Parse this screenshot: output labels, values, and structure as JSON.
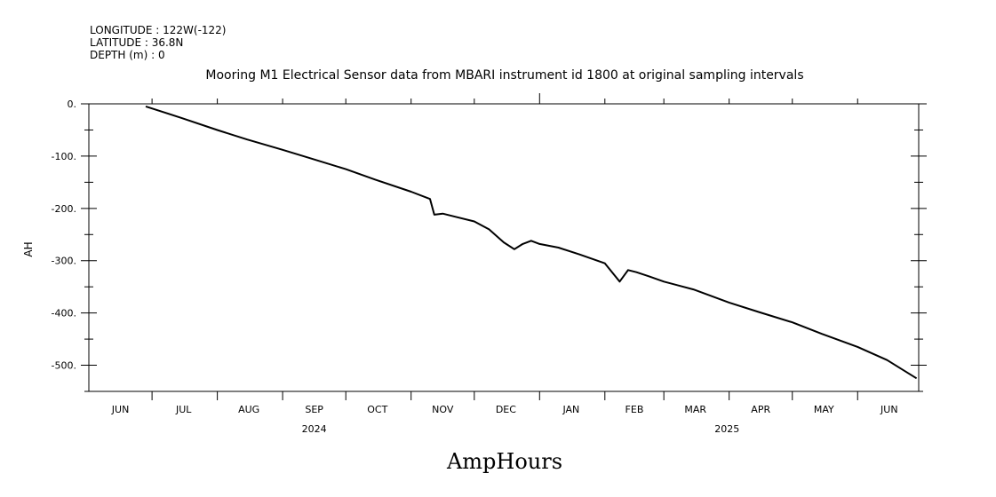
{
  "header": {
    "longitude": "LONGITUDE : 122W(-122)",
    "latitude": "LATITUDE : 36.8N",
    "depth": "DEPTH (m) : 0"
  },
  "caption": "AmpHours",
  "chart_data": {
    "type": "line",
    "title": "Mooring M1 Electrical Sensor data from MBARI instrument id 1800 at original sampling intervals",
    "xlabel": "",
    "ylabel": "AH",
    "xlim": [
      "2024-06-01",
      "2025-06-30"
    ],
    "ylim": [
      -550,
      0
    ],
    "y_ticks": [
      0,
      -100,
      -200,
      -300,
      -400,
      -500
    ],
    "y_tick_labels": [
      "0.",
      "-100.",
      "-200.",
      "-300.",
      "-400.",
      "-500."
    ],
    "x_month_labels": [
      {
        "label": "JUN",
        "date": "2024-06-16"
      },
      {
        "label": "JUL",
        "date": "2024-07-16"
      },
      {
        "label": "AUG",
        "date": "2024-08-16"
      },
      {
        "label": "SEP",
        "date": "2024-09-16"
      },
      {
        "label": "OCT",
        "date": "2024-10-16"
      },
      {
        "label": "NOV",
        "date": "2024-11-16"
      },
      {
        "label": "DEC",
        "date": "2024-12-16"
      },
      {
        "label": "JAN",
        "date": "2025-01-16"
      },
      {
        "label": "FEB",
        "date": "2025-02-15"
      },
      {
        "label": "MAR",
        "date": "2025-03-16"
      },
      {
        "label": "APR",
        "date": "2025-04-16"
      },
      {
        "label": "MAY",
        "date": "2025-05-16"
      },
      {
        "label": "JUN",
        "date": "2025-06-16"
      }
    ],
    "x_year_labels": [
      {
        "label": "2024",
        "date": "2024-09-16"
      },
      {
        "label": "2025",
        "date": "2025-03-31"
      }
    ],
    "series": [
      {
        "color": "#000000",
        "x": [
          "2024-06-28",
          "2024-07-15",
          "2024-08-01",
          "2024-08-15",
          "2024-09-01",
          "2024-09-15",
          "2024-10-01",
          "2024-10-15",
          "2024-11-01",
          "2024-11-10",
          "2024-11-12",
          "2024-11-16",
          "2024-12-01",
          "2024-12-08",
          "2024-12-15",
          "2024-12-20",
          "2024-12-24",
          "2024-12-28",
          "2025-01-01",
          "2025-01-10",
          "2025-01-20",
          "2025-02-01",
          "2025-02-08",
          "2025-02-12",
          "2025-02-16",
          "2025-02-22",
          "2025-03-01",
          "2025-03-15",
          "2025-04-01",
          "2025-04-15",
          "2025-05-01",
          "2025-05-15",
          "2025-06-01",
          "2025-06-15",
          "2025-06-29"
        ],
        "y": [
          -5,
          -27,
          -50,
          -68,
          -88,
          -105,
          -125,
          -145,
          -168,
          -182,
          -212,
          -210,
          -225,
          -240,
          -265,
          -278,
          -268,
          -262,
          -268,
          -275,
          -288,
          -305,
          -340,
          -318,
          -322,
          -330,
          -340,
          -355,
          -380,
          -398,
          -418,
          -440,
          -465,
          -490,
          -525
        ]
      }
    ]
  }
}
